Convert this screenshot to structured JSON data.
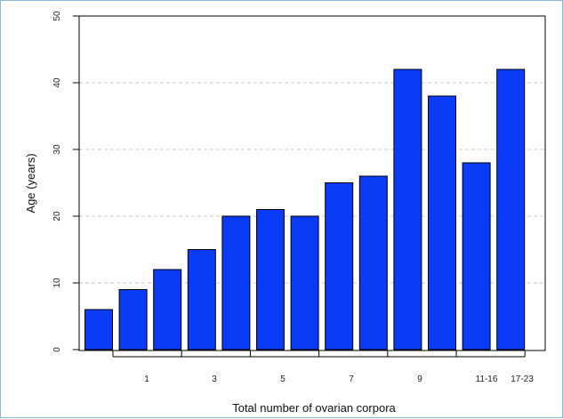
{
  "chart_data": {
    "type": "bar",
    "title": "",
    "xlabel": "Total number of ovarian corpora",
    "ylabel": "Age (years)",
    "ylim": [
      0,
      50
    ],
    "yticks": [
      "0",
      "10",
      "20",
      "30",
      "40",
      "50"
    ],
    "xtick_labels": [
      "1",
      "3",
      "5",
      "7",
      "9",
      "11-16",
      "17-23"
    ],
    "values": [
      6,
      9,
      12,
      15,
      20,
      21,
      20,
      25,
      26,
      42,
      38,
      28,
      42
    ],
    "grid": "horizontal-dashed",
    "bar_color": "#0a3cf7"
  }
}
